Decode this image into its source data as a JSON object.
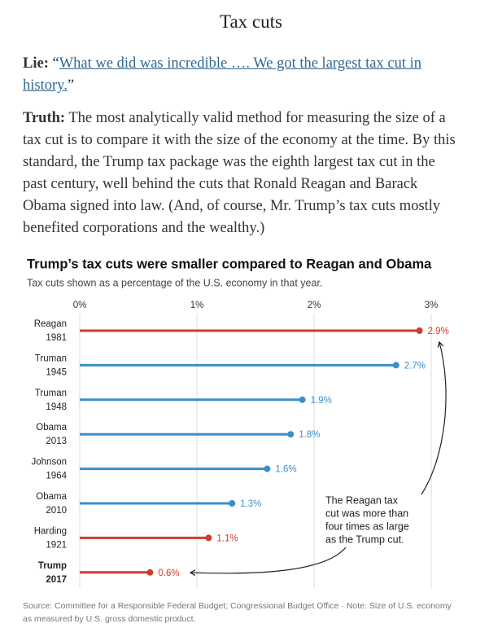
{
  "header": {
    "title": "Tax cuts"
  },
  "lie": {
    "label": "Lie:",
    "open_quote": "“",
    "quote": "What we did was incredible …. We got the largest tax cut in history.",
    "close_quote": "”"
  },
  "truth": {
    "label": "Truth:",
    "text": "The most analytically valid method for measuring the size of a tax cut is to compare it with the size of the economy at the time. By this standard, the Trump tax package was the eighth largest tax cut in the past century, well behind the cuts that Ronald Reagan and Barack Obama signed into law. (And, of course, Mr. Trump’s tax cuts mostly benefited corporations and the wealthy.)"
  },
  "chart_data": {
    "type": "bar",
    "orientation": "horizontal",
    "title": "Trump’s tax cuts were smaller compared to Reagan and Obama",
    "subtitle": "Tax cuts shown as a percentage of the U.S. economy in that year.",
    "categories": [
      "Reagan",
      "Truman",
      "Truman",
      "Obama",
      "Johnson",
      "Obama",
      "Harding",
      "Trump"
    ],
    "category_years": [
      "1981",
      "1945",
      "1948",
      "2013",
      "1964",
      "2010",
      "1921",
      "2017"
    ],
    "emphasis": [
      false,
      false,
      false,
      false,
      false,
      false,
      false,
      true
    ],
    "values": [
      2.9,
      2.7,
      1.9,
      1.8,
      1.6,
      1.3,
      1.1,
      0.6
    ],
    "value_labels": [
      "2.9%",
      "2.7%",
      "1.9%",
      "1.8%",
      "1.6%",
      "1.3%",
      "1.1%",
      "0.6%"
    ],
    "colors": [
      "#d13c2c",
      "#3a8fc9",
      "#3a8fc9",
      "#3a8fc9",
      "#3a8fc9",
      "#3a8fc9",
      "#d13c2c",
      "#d13c2c"
    ],
    "xlim": [
      0,
      3
    ],
    "xticks": [
      {
        "value": 0,
        "label": "0%"
      },
      {
        "value": 1,
        "label": "1%"
      },
      {
        "value": 2,
        "label": "2%"
      },
      {
        "value": 3,
        "label": "3%"
      }
    ],
    "grid": true,
    "annotation": [
      "The Reagan tax",
      "cut was more than",
      "four times as large",
      "as the Trump cut."
    ],
    "source": "Source: Committee for a Responsible Federal Budget; Congressional Budget Office  ·  Note: Size of U.S. economy as measured by U.S. gross domestic product."
  }
}
